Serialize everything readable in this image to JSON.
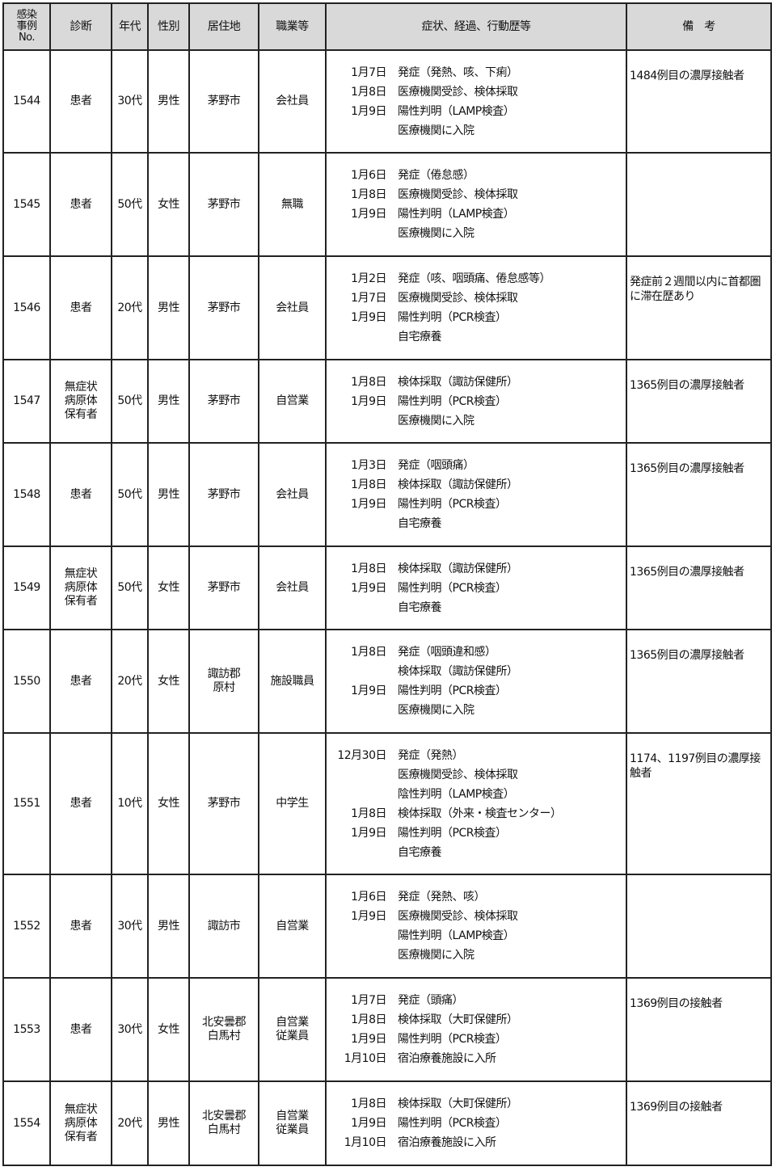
{
  "headers": [
    "感染事例No.",
    "診断",
    "年代",
    "性別",
    "居住地",
    "職業等",
    "症状、経過、行動歴等",
    "備　考"
  ],
  "header_no_lines": [
    "感染",
    "事例",
    "No."
  ],
  "rows": [
    {
      "no": "1544",
      "diag": "患者",
      "age": "30代",
      "sex": "男性",
      "res": "茅野市",
      "job": "会社員",
      "events": [
        {
          "d": "1月7日",
          "t": "発症（発熱、咳、下痢）"
        },
        {
          "d": "1月8日",
          "t": "医療機関受診、検体採取"
        },
        {
          "d": "1月9日",
          "t": "陽性判明（LAMP検査）"
        },
        {
          "d": "",
          "t": "医療機関に入院"
        }
      ],
      "note": "1484例目の濃厚接触者"
    },
    {
      "no": "1545",
      "diag": "患者",
      "age": "50代",
      "sex": "女性",
      "res": "茅野市",
      "job": "無職",
      "events": [
        {
          "d": "1月6日",
          "t": "発症（倦怠感）"
        },
        {
          "d": "1月8日",
          "t": "医療機関受診、検体採取"
        },
        {
          "d": "1月9日",
          "t": "陽性判明（LAMP検査）"
        },
        {
          "d": "",
          "t": "医療機関に入院"
        }
      ],
      "note": ""
    },
    {
      "no": "1546",
      "diag": "患者",
      "age": "20代",
      "sex": "男性",
      "res": "茅野市",
      "job": "会社員",
      "events": [
        {
          "d": "1月2日",
          "t": "発症（咳、咽頭痛、倦怠感等）"
        },
        {
          "d": "1月7日",
          "t": "医療機関受診、検体採取"
        },
        {
          "d": "1月9日",
          "t": "陽性判明（PCR検査）"
        },
        {
          "d": "",
          "t": "自宅療養"
        }
      ],
      "note": "発症前２週間以内に首都圏に滞在歴あり"
    },
    {
      "no": "1547",
      "diag": "無症状病原体保有者",
      "age": "50代",
      "sex": "男性",
      "res": "茅野市",
      "job": "自営業",
      "events": [
        {
          "d": "1月8日",
          "t": "検体採取（諏訪保健所）"
        },
        {
          "d": "1月9日",
          "t": "陽性判明（PCR検査）"
        },
        {
          "d": "",
          "t": "医療機関に入院"
        }
      ],
      "note": "1365例目の濃厚接触者"
    },
    {
      "no": "1548",
      "diag": "患者",
      "age": "50代",
      "sex": "男性",
      "res": "茅野市",
      "job": "会社員",
      "events": [
        {
          "d": "1月3日",
          "t": "発症（咽頭痛）"
        },
        {
          "d": "1月8日",
          "t": "検体採取（諏訪保健所）"
        },
        {
          "d": "1月9日",
          "t": "陽性判明（PCR検査）"
        },
        {
          "d": "",
          "t": "自宅療養"
        }
      ],
      "note": "1365例目の濃厚接触者"
    },
    {
      "no": "1549",
      "diag": "無症状病原体保有者",
      "age": "50代",
      "sex": "女性",
      "res": "茅野市",
      "job": "会社員",
      "events": [
        {
          "d": "1月8日",
          "t": "検体採取（諏訪保健所）"
        },
        {
          "d": "1月9日",
          "t": "陽性判明（PCR検査）"
        },
        {
          "d": "",
          "t": "自宅療養"
        }
      ],
      "note": "1365例目の濃厚接触者"
    },
    {
      "no": "1550",
      "diag": "患者",
      "age": "20代",
      "sex": "女性",
      "res": "諏訪郡原村",
      "job": "施設職員",
      "events": [
        {
          "d": "1月8日",
          "t": "発症（咽頭違和感）"
        },
        {
          "d": "",
          "t": "検体採取（諏訪保健所）"
        },
        {
          "d": "1月9日",
          "t": "陽性判明（PCR検査）"
        },
        {
          "d": "",
          "t": "医療機関に入院"
        }
      ],
      "note": "1365例目の濃厚接触者"
    },
    {
      "no": "1551",
      "diag": "患者",
      "age": "10代",
      "sex": "女性",
      "res": "茅野市",
      "job": "中学生",
      "events": [
        {
          "d": "12月30日",
          "t": "発症（発熱）"
        },
        {
          "d": "",
          "t": "医療機関受診、検体採取"
        },
        {
          "d": "",
          "t": "陰性判明（LAMP検査）"
        },
        {
          "d": "1月8日",
          "t": "検体採取（外来・検査センター）"
        },
        {
          "d": "1月9日",
          "t": "陽性判明（PCR検査）"
        },
        {
          "d": "",
          "t": "自宅療養"
        }
      ],
      "note": "1174、1197例目の濃厚接触者"
    },
    {
      "no": "1552",
      "diag": "患者",
      "age": "30代",
      "sex": "男性",
      "res": "諏訪市",
      "job": "自営業",
      "events": [
        {
          "d": "1月6日",
          "t": "発症（発熱、咳）"
        },
        {
          "d": "1月9日",
          "t": "医療機関受診、検体採取"
        },
        {
          "d": "",
          "t": "陽性判明（LAMP検査）"
        },
        {
          "d": "",
          "t": "医療機関に入院"
        }
      ],
      "note": ""
    },
    {
      "no": "1553",
      "diag": "患者",
      "age": "30代",
      "sex": "女性",
      "res": "北安曇郡白馬村",
      "job": "自営業従業員",
      "events": [
        {
          "d": "1月7日",
          "t": "発症（頭痛）"
        },
        {
          "d": "1月8日",
          "t": "検体採取（大町保健所）"
        },
        {
          "d": "1月9日",
          "t": "陽性判明（PCR検査）"
        },
        {
          "d": "1月10日",
          "t": "宿泊療養施設に入所"
        }
      ],
      "note": "1369例目の接触者"
    },
    {
      "no": "1554",
      "diag": "無症状病原体保有者",
      "age": "20代",
      "sex": "男性",
      "res": "北安曇郡白馬村",
      "job": "自営業従業員",
      "events": [
        {
          "d": "1月8日",
          "t": "検体採取（大町保健所）"
        },
        {
          "d": "1月9日",
          "t": "陽性判明（PCR検査）"
        },
        {
          "d": "1月10日",
          "t": "宿泊療養施設に入所"
        }
      ],
      "note": "1369例目の接触者"
    }
  ]
}
